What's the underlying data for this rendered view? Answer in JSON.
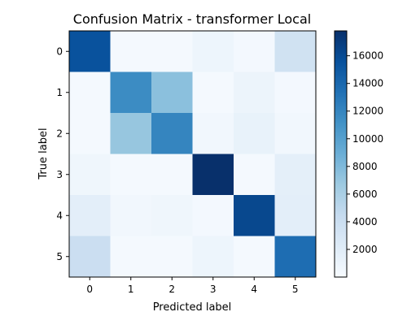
{
  "chart_data": {
    "type": "heatmap",
    "title": "Confusion Matrix - transformer Local",
    "xlabel": "Predicted label",
    "ylabel": "True label",
    "x_ticks": [
      "0",
      "1",
      "2",
      "3",
      "4",
      "5"
    ],
    "y_ticks": [
      "0",
      "1",
      "2",
      "3",
      "4",
      "5"
    ],
    "matrix": [
      [
        15500,
        300,
        300,
        900,
        400,
        3500
      ],
      [
        300,
        11500,
        7500,
        300,
        1000,
        400
      ],
      [
        300,
        7000,
        12000,
        500,
        1300,
        500
      ],
      [
        700,
        300,
        300,
        17800,
        300,
        1700
      ],
      [
        1800,
        500,
        700,
        400,
        16200,
        1800
      ],
      [
        4000,
        300,
        300,
        900,
        300,
        13600
      ]
    ],
    "colorbar": {
      "min": 0,
      "max": 17800,
      "ticks": [
        "2000",
        "4000",
        "6000",
        "8000",
        "10000",
        "12000",
        "14000",
        "16000"
      ],
      "tick_values": [
        2000,
        4000,
        6000,
        8000,
        10000,
        12000,
        14000,
        16000
      ]
    },
    "colormap": "Blues"
  }
}
